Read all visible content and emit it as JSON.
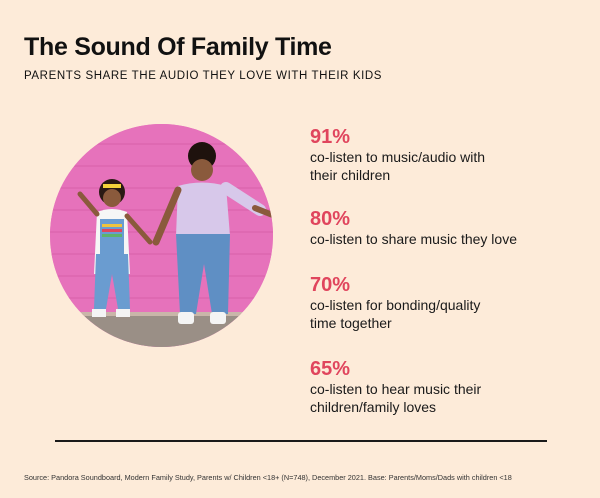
{
  "header": {
    "title": "The Sound Of Family Time",
    "subtitle": "PARENTS SHARE THE AUDIO THEY LOVE WITH THEIR KIDS"
  },
  "photo": {
    "description_icon": "photo-mother-daughter"
  },
  "stats": [
    {
      "value": "91%",
      "label_line1": "co-listen to music/audio with",
      "label_line2": "their children"
    },
    {
      "value": "80%",
      "label_line1": "co-listen to share music they love",
      "label_line2": ""
    },
    {
      "value": "70%",
      "label_line1": "co-listen for bonding/quality",
      "label_line2": "time together"
    },
    {
      "value": "65%",
      "label_line1": "co-listen to hear music their",
      "label_line2": "children/family loves"
    }
  ],
  "footer": {
    "source": "Source: Pandora Soundboard, Modern Family Study, Parents w/ Children <18+ (N=748), December 2021. Base: Parents/Moms/Dads with children <18"
  },
  "colors": {
    "background": "#fdebd9",
    "accent": "#e0455d",
    "wall": "#e56fb8"
  }
}
